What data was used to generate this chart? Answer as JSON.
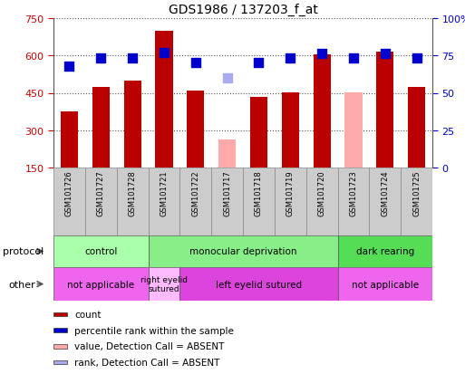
{
  "title": "GDS1986 / 137203_f_at",
  "samples": [
    "GSM101726",
    "GSM101727",
    "GSM101728",
    "GSM101721",
    "GSM101722",
    "GSM101717",
    "GSM101718",
    "GSM101719",
    "GSM101720",
    "GSM101723",
    "GSM101724",
    "GSM101725"
  ],
  "bar_values": [
    375,
    475,
    500,
    700,
    460,
    null,
    435,
    450,
    605,
    null,
    615,
    475
  ],
  "bar_absent_values": [
    null,
    null,
    null,
    null,
    null,
    265,
    null,
    null,
    null,
    450,
    null,
    null
  ],
  "dot_values": [
    68,
    73,
    73,
    77,
    70,
    60,
    70,
    73,
    76,
    73,
    76,
    73
  ],
  "dot_absent_values": [
    null,
    null,
    null,
    null,
    null,
    60,
    null,
    null,
    null,
    null,
    null,
    null
  ],
  "dot_absent": [
    false,
    false,
    false,
    false,
    false,
    true,
    false,
    false,
    false,
    false,
    false,
    false
  ],
  "bar_color_present": "#bb0000",
  "bar_color_absent": "#ffaaaa",
  "dot_color_present": "#0000cc",
  "dot_color_absent": "#aaaaee",
  "ylim_left": [
    150,
    750
  ],
  "ylim_right": [
    0,
    100
  ],
  "left_ticks": [
    150,
    300,
    450,
    600,
    750
  ],
  "right_ticks": [
    0,
    25,
    50,
    75,
    100
  ],
  "right_tick_labels": [
    "0",
    "25",
    "50",
    "75",
    "100%"
  ],
  "protocol_groups": [
    {
      "label": "control",
      "start": 0,
      "end": 3,
      "color": "#aaffaa"
    },
    {
      "label": "monocular deprivation",
      "start": 3,
      "end": 9,
      "color": "#88ee88"
    },
    {
      "label": "dark rearing",
      "start": 9,
      "end": 12,
      "color": "#55dd55"
    }
  ],
  "other_groups": [
    {
      "label": "not applicable",
      "start": 0,
      "end": 3,
      "color": "#ee66ee"
    },
    {
      "label": "right eyelid\nsutured",
      "start": 3,
      "end": 4,
      "color": "#ffbbff"
    },
    {
      "label": "left eyelid sutured",
      "start": 4,
      "end": 9,
      "color": "#dd44dd"
    },
    {
      "label": "not applicable",
      "start": 9,
      "end": 12,
      "color": "#ee66ee"
    }
  ],
  "legend_items": [
    {
      "label": "count",
      "color": "#bb0000"
    },
    {
      "label": "percentile rank within the sample",
      "color": "#0000cc"
    },
    {
      "label": "value, Detection Call = ABSENT",
      "color": "#ffaaaa"
    },
    {
      "label": "rank, Detection Call = ABSENT",
      "color": "#aaaaee"
    }
  ],
  "protocol_label": "protocol",
  "other_label": "other",
  "grid_color": "#555555",
  "tick_label_color_left": "#cc0000",
  "tick_label_color_right": "#0000cc",
  "bg_color": "#ffffff",
  "sample_bg_color": "#cccccc",
  "bar_width": 0.55
}
